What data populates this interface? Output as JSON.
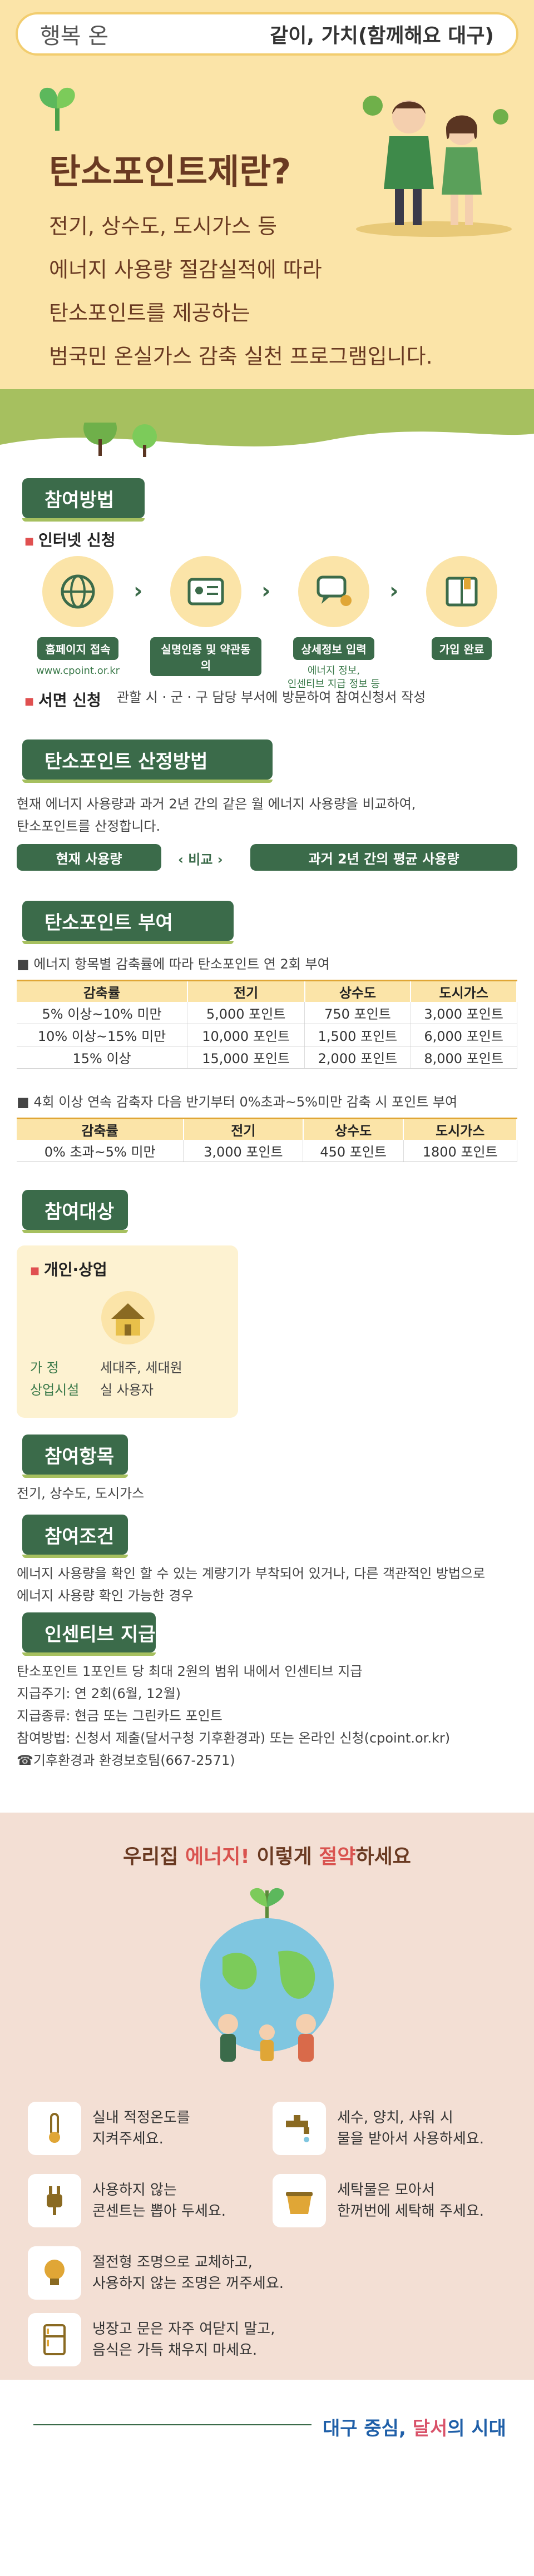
{
  "topbar": {
    "left": "행복 온",
    "right": "같이, 가치(함께해요 대구)"
  },
  "hero": {
    "title": "탄소포인트제란?",
    "lines": [
      "전기, 상수도, 도시가스 등",
      "에너지 사용량 절감실적에 따라",
      "탄소포인트를 제공하는",
      "범국민 온실가스 감축 실천 프로그램입니다."
    ]
  },
  "participate": {
    "heading": "참여방법",
    "internet_title": "인터넷 신청",
    "steps": [
      {
        "label": "홈페이지 접속",
        "icon": "globe-icon"
      },
      {
        "label": "실명인증 및 약관동의",
        "icon": "id-card-icon"
      },
      {
        "label": "상세정보 입력",
        "icon": "chat-icon"
      },
      {
        "label": "가입 완료",
        "icon": "book-icon"
      }
    ],
    "url": "www.cpoint.or.kr",
    "step3_note": [
      "에너지 정보,",
      "인센티브 지급 정보 등"
    ],
    "written_title": "서면 신청",
    "written_text": "관할 시 · 군 · 구 담당 부서에 방문하여 참여신청서 작성"
  },
  "calc": {
    "heading": "탄소포인트 산정방법",
    "text": [
      "현재 에너지 사용량과 과거 2년 간의 같은 월 에너지 사용량을 비교하여,",
      "탄소포인트를 산정합니다."
    ],
    "left": "현재 사용량",
    "mid": "비교",
    "right": "과거 2년 간의 평균 사용량"
  },
  "grant": {
    "heading": "탄소포인트 부여",
    "note1": "에너지 항목별 감축률에 따라 탄소포인트 연 2회 부여",
    "headers": [
      "감축률",
      "전기",
      "상수도",
      "도시가스"
    ],
    "rows": [
      [
        "5% 이상~10% 미만",
        "5,000 포인트",
        "750 포인트",
        "3,000 포인트"
      ],
      [
        "10% 이상~15% 미만",
        "10,000 포인트",
        "1,500 포인트",
        "6,000 포인트"
      ],
      [
        "15% 이상",
        "15,000 포인트",
        "2,000 포인트",
        "8,000 포인트"
      ]
    ],
    "note2": "4회 이상 연속 감축자 다음 반기부터 0%초과~5%미만 감축 시 포인트 부여",
    "headers2": [
      "감축률",
      "전기",
      "상수도",
      "도시가스"
    ],
    "rows2": [
      [
        "0% 초과~5% 미만",
        "3,000 포인트",
        "450 포인트",
        "1800 포인트"
      ]
    ]
  },
  "target": {
    "heading": "참여대상",
    "card_title": "개인·상업",
    "row1_label": "가 정",
    "row1_value": "세대주, 세대원",
    "row2_label": "상업시설",
    "row2_value": "실 사용자"
  },
  "items": {
    "heading": "참여항목",
    "text": "전기, 상수도, 도시가스"
  },
  "condition": {
    "heading": "참여조건",
    "text": [
      "에너지 사용량을 확인 할 수 있는 계량기가 부착되어 있거나, 다른 객관적인 방법으로",
      "에너지 사용량 확인 가능한 경우"
    ]
  },
  "incentive": {
    "heading": "인센티브 지급",
    "lines": [
      "탄소포인트 1포인트 당 최대 2원의 범위 내에서 인센티브 지급",
      "지급주기: 연 2회(6월, 12월)",
      "지급종류: 현금 또는 그린카드 포인트",
      "참여방법: 신청서 제출(달서구청 기후환경과) 또는 온라인 신청(cpoint.or.kr)",
      "☎기후환경과 환경보호팀(667-2571)"
    ]
  },
  "save": {
    "title_pre": "우리집 ",
    "title_em1": "에너지!",
    "title_mid": " 이렇게 ",
    "title_em2": "절약",
    "title_post": "하세요",
    "tips": [
      {
        "icon": "thermometer-icon",
        "lines": [
          "실내 적정온도를",
          "지켜주세요."
        ]
      },
      {
        "icon": "faucet-icon",
        "lines": [
          "세수, 양치, 샤워 시",
          "물을 받아서 사용하세요."
        ]
      },
      {
        "icon": "plug-icon",
        "lines": [
          "사용하지 않는",
          "콘센트는 뽑아 두세요."
        ]
      },
      {
        "icon": "laundry-basket-icon",
        "lines": [
          "세탁물은 모아서",
          "한꺼번에 세탁해 주세요."
        ]
      },
      {
        "icon": "lightbulb-icon",
        "lines": [
          "절전형 조명으로 교체하고,",
          "사용하지 않는 조명은 꺼주세요."
        ]
      },
      {
        "icon": "fridge-icon",
        "lines": [
          "냉장고 문은 자주 여닫지 말고,",
          "음식은 가득 채우지 마세요."
        ]
      }
    ]
  },
  "footer": {
    "slogan_a": "대구 중심, ",
    "slogan_b": "달서",
    "slogan_c": "의 시대"
  },
  "colors": {
    "primary": "#3b6b4a",
    "accent_yellow": "#fbe4a8",
    "leaf": "#a6c05f",
    "brown": "#6a3a22"
  }
}
